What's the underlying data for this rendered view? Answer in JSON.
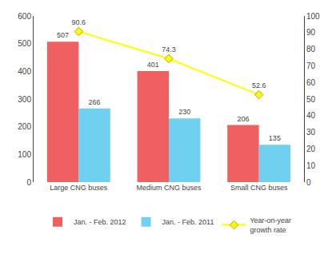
{
  "chart_data": {
    "type": "bar",
    "categories": [
      "Large CNG buses",
      "Medium CNG buses",
      "Small CNG buses"
    ],
    "series": [
      {
        "name": "Jan. - Feb. 2012",
        "color": "#f06060",
        "values": [
          507,
          401,
          206
        ]
      },
      {
        "name": "Jan. - Feb. 2011",
        "color": "#70d0f0",
        "values": [
          266,
          230,
          135
        ]
      },
      {
        "name": "Year-on-year\ngrowth rate",
        "type": "line",
        "axis": "y2",
        "color": "#ffff00",
        "marker": "diamond",
        "values": [
          90.6,
          74.3,
          52.6
        ]
      }
    ],
    "ylim": [
      0,
      600
    ],
    "yticks": [
      0,
      100,
      200,
      300,
      400,
      500,
      600
    ],
    "y2lim": [
      0,
      100
    ],
    "y2ticks": [
      0,
      10,
      20,
      30,
      40,
      50,
      60,
      70,
      80,
      90,
      100
    ],
    "grid": false,
    "legend": "bottom",
    "data_labels": true
  }
}
